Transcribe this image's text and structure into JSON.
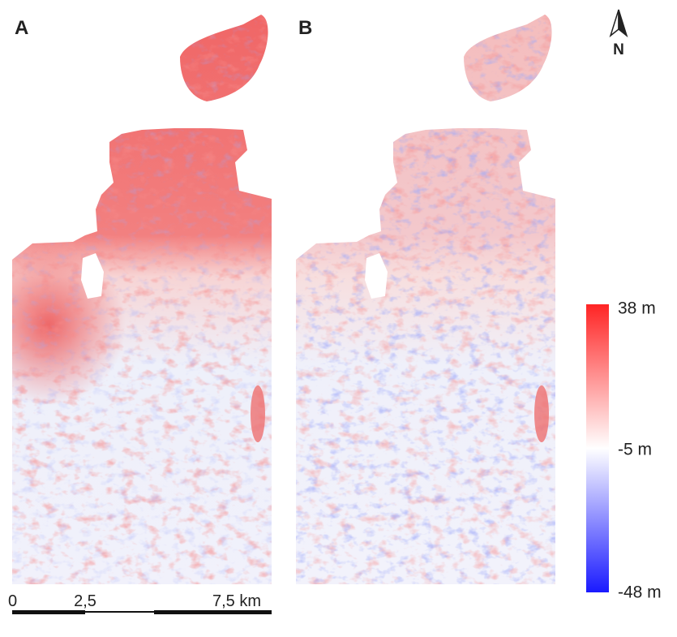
{
  "panels": [
    {
      "label": "A"
    },
    {
      "label": "B"
    }
  ],
  "north_arrow": {
    "label": "N"
  },
  "legend": {
    "labels": [
      "38 m",
      "-5 m",
      "-48 m"
    ]
  },
  "scale_bar": {
    "labels": [
      "0",
      "2,5",
      "7,5 km"
    ]
  }
}
